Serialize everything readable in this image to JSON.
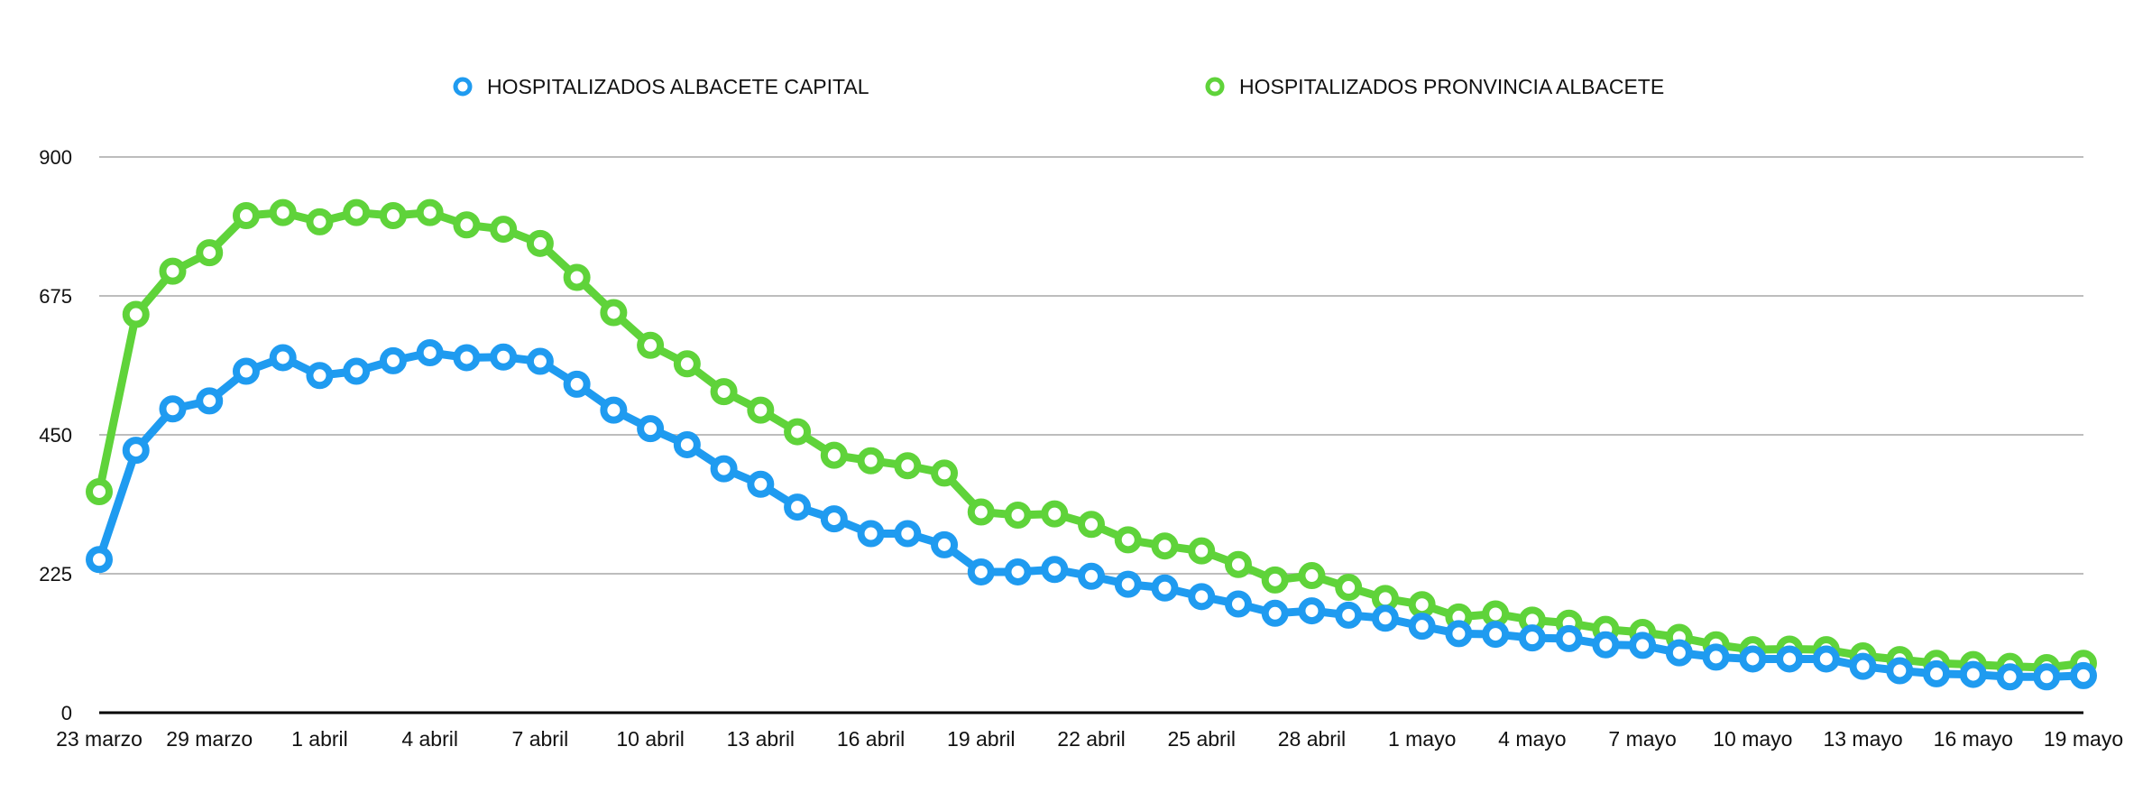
{
  "chart_data": {
    "type": "line",
    "title": "",
    "xlabel": "",
    "ylabel": "",
    "ylim": [
      0,
      900
    ],
    "yticks": [
      0,
      225,
      450,
      675,
      900
    ],
    "grid": true,
    "legend_position": "top-center",
    "x_tick_labels": [
      "23 marzo",
      "29 marzo",
      "1 abril",
      "4 abril",
      "7 abril",
      "10 abril",
      "13 abril",
      "16 abril",
      "19 abril",
      "22 abril",
      "25 abril",
      "28 abril",
      "1 mayo",
      "4 mayo",
      "7 mayo",
      "10 mayo",
      "13 mayo",
      "16 mayo",
      "19 mayo"
    ],
    "series": [
      {
        "name": "HOSPITALIZADOS ALBACETE CAPITAL",
        "color": "#1f9bf0",
        "values": [
          248,
          425,
          492,
          505,
          553,
          575,
          546,
          553,
          570,
          583,
          575,
          576,
          569,
          532,
          490,
          460,
          434,
          395,
          370,
          333,
          314,
          290,
          290,
          272,
          228,
          228,
          232,
          221,
          208,
          202,
          188,
          176,
          161,
          165,
          158,
          153,
          140,
          128,
          127,
          121,
          120,
          110,
          109,
          97,
          90,
          87,
          87,
          87,
          75,
          68,
          63,
          62,
          58,
          58,
          60
        ]
      },
      {
        "name": "HOSPITALIZADOS PRONVINCIA ALBACETE",
        "color": "#5fd33a",
        "values": [
          358,
          645,
          715,
          745,
          805,
          810,
          795,
          810,
          805,
          810,
          790,
          783,
          760,
          705,
          648,
          595,
          565,
          520,
          490,
          455,
          417,
          408,
          400,
          388,
          325,
          320,
          322,
          305,
          280,
          270,
          262,
          240,
          215,
          222,
          203,
          185,
          175,
          155,
          160,
          150,
          145,
          135,
          130,
          122,
          110,
          102,
          103,
          102,
          92,
          86,
          80,
          78,
          75,
          73,
          80
        ]
      }
    ]
  }
}
